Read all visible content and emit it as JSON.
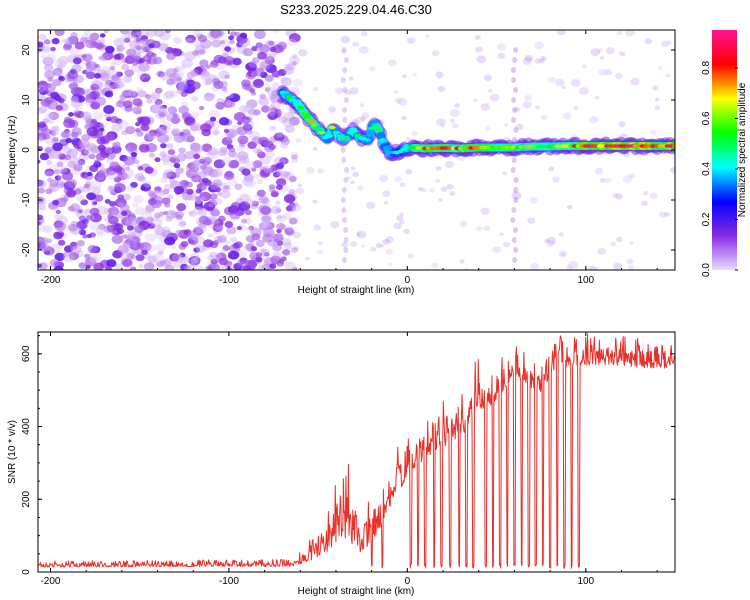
{
  "title": "S233.2025.229.04.46.C30",
  "chart_data": [
    {
      "type": "heatmap",
      "title": "S233.2025.229.04.46.C30",
      "xlabel": "Height of straight line (km)",
      "ylabel": "Frequency (Hz)",
      "xlim": [
        -207,
        150
      ],
      "ylim": [
        -24,
        24
      ],
      "xticks": [
        -200,
        -100,
        0,
        100
      ],
      "xtick_labels": [
        "-200",
        "-100",
        "0",
        "100"
      ],
      "yticks": [
        -20,
        -10,
        0,
        10,
        20
      ],
      "ytick_labels": [
        "-20",
        "-10",
        "0",
        "10",
        "20"
      ],
      "noise_region_xmax": -63,
      "ridge": [
        {
          "x": -70,
          "f": 11.5,
          "a": 0.45
        },
        {
          "x": -62,
          "f": 9.5,
          "a": 0.5
        },
        {
          "x": -57,
          "f": 7.0,
          "a": 0.7
        },
        {
          "x": -52,
          "f": 5.0,
          "a": 0.6
        },
        {
          "x": -48,
          "f": 3.5,
          "a": 0.55
        },
        {
          "x": -45,
          "f": 2.0,
          "a": 0.45
        },
        {
          "x": -42,
          "f": 4.5,
          "a": 0.55
        },
        {
          "x": -39,
          "f": 3.0,
          "a": 0.5
        },
        {
          "x": -35,
          "f": 2.0,
          "a": 0.45
        },
        {
          "x": -31,
          "f": 4.0,
          "a": 0.5
        },
        {
          "x": -27,
          "f": 2.5,
          "a": 0.45
        },
        {
          "x": -22,
          "f": 2.0,
          "a": 0.4
        },
        {
          "x": -19,
          "f": 5.5,
          "a": 0.55
        },
        {
          "x": -16,
          "f": 4.0,
          "a": 0.5
        },
        {
          "x": -13,
          "f": 1.0,
          "a": 0.45
        },
        {
          "x": -10,
          "f": -0.5,
          "a": 0.4
        },
        {
          "x": -5,
          "f": -0.5,
          "a": 0.35
        },
        {
          "x": 0,
          "f": 0.5,
          "a": 0.5
        },
        {
          "x": 10,
          "f": 0.3,
          "a": 0.7
        },
        {
          "x": 20,
          "f": 0.4,
          "a": 0.75
        },
        {
          "x": 30,
          "f": 0.3,
          "a": 0.7
        },
        {
          "x": 40,
          "f": 0.5,
          "a": 0.7
        },
        {
          "x": 50,
          "f": 0.5,
          "a": 0.65
        },
        {
          "x": 60,
          "f": 0.5,
          "a": 0.6
        },
        {
          "x": 70,
          "f": 0.7,
          "a": 0.6
        },
        {
          "x": 80,
          "f": 0.7,
          "a": 0.6
        },
        {
          "x": 90,
          "f": 0.8,
          "a": 0.65
        },
        {
          "x": 100,
          "f": 0.8,
          "a": 0.8
        },
        {
          "x": 110,
          "f": 0.8,
          "a": 0.85
        },
        {
          "x": 120,
          "f": 0.8,
          "a": 0.9
        },
        {
          "x": 130,
          "f": 0.8,
          "a": 0.9
        },
        {
          "x": 140,
          "f": 0.8,
          "a": 0.85
        },
        {
          "x": 150,
          "f": 0.8,
          "a": 0.85
        }
      ],
      "colorbar": {
        "label": "Normalized spectral amplitude",
        "ticks": [
          0.0,
          0.2,
          0.4,
          0.6,
          0.8
        ],
        "tick_labels": [
          "0.0",
          "0.2",
          "0.4",
          "0.6",
          "0.8"
        ],
        "range": [
          0,
          0.95
        ],
        "colors": [
          "#e8dcff",
          "#8a2be2",
          "#0000ff",
          "#00ffff",
          "#00ff00",
          "#ffff00",
          "#ff0000",
          "#ff1493"
        ]
      }
    },
    {
      "type": "line",
      "xlabel": "Height of straight line (km)",
      "ylabel": "SNR (10 * v/v)",
      "xlim": [
        -207,
        150
      ],
      "ylim": [
        0,
        660
      ],
      "xticks": [
        -200,
        -100,
        0,
        100
      ],
      "xtick_labels": [
        "-200",
        "-100",
        "0",
        "100"
      ],
      "yticks": [
        0,
        200,
        400,
        600
      ],
      "ytick_labels": [
        "0",
        "200",
        "400",
        "600"
      ],
      "color": "#e8302a",
      "series": [
        {
          "name": "SNR",
          "envelope": [
            {
              "x": -207,
              "lo": 5,
              "hi": 30
            },
            {
              "x": -65,
              "lo": 5,
              "hi": 35
            },
            {
              "x": -55,
              "lo": 10,
              "hi": 90
            },
            {
              "x": -45,
              "lo": 20,
              "hi": 160
            },
            {
              "x": -37,
              "lo": 15,
              "hi": 350
            },
            {
              "x": -30,
              "lo": 10,
              "hi": 260
            },
            {
              "x": -25,
              "lo": 5,
              "hi": 180
            },
            {
              "x": -15,
              "lo": 80,
              "hi": 240
            },
            {
              "x": -8,
              "lo": 150,
              "hi": 330
            },
            {
              "x": 0,
              "lo": 220,
              "hi": 380
            },
            {
              "x": 10,
              "lo": 280,
              "hi": 420
            },
            {
              "x": 20,
              "lo": 300,
              "hi": 470
            },
            {
              "x": 30,
              "lo": 320,
              "hi": 500
            },
            {
              "x": 40,
              "lo": 400,
              "hi": 600
            },
            {
              "x": 45,
              "lo": 420,
              "hi": 540
            },
            {
              "x": 50,
              "lo": 440,
              "hi": 580
            },
            {
              "x": 60,
              "lo": 500,
              "hi": 650
            },
            {
              "x": 70,
              "lo": 470,
              "hi": 600
            },
            {
              "x": 75,
              "lo": 470,
              "hi": 560
            },
            {
              "x": 82,
              "lo": 520,
              "hi": 660
            },
            {
              "x": 90,
              "lo": 530,
              "hi": 660
            },
            {
              "x": 100,
              "lo": 540,
              "hi": 660
            },
            {
              "x": 120,
              "lo": 540,
              "hi": 650
            },
            {
              "x": 140,
              "lo": 530,
              "hi": 640
            },
            {
              "x": 150,
              "lo": 540,
              "hi": 640
            }
          ],
          "dropouts": [
            -20,
            -14,
            2,
            6,
            10,
            15,
            19,
            24,
            29,
            33,
            37,
            44,
            48,
            52,
            56,
            60,
            64,
            68,
            72,
            76,
            80,
            84,
            88,
            92,
            96
          ]
        }
      ]
    }
  ]
}
